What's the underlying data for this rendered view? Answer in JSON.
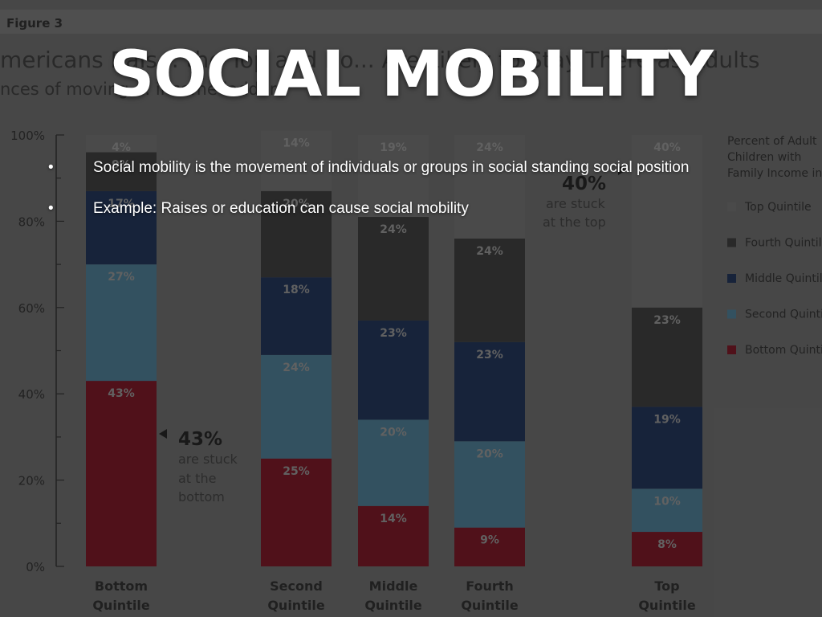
{
  "slide": {
    "title": "SOCIAL MOBILITY",
    "bullets": [
      "Social mobility is the movement of individuals or groups in social standing social position",
      "Example: Raises or education can cause social mobility"
    ],
    "bullet_marker": "•"
  },
  "colors": {
    "bottom": "#7d1020",
    "second": "#4a7e98",
    "middle": "#1b2f57",
    "fourth": "#3a3a3a",
    "top": "#737373",
    "background": "#5f5f5f",
    "figure_bg": "#6d6d6d"
  },
  "chart_data": {
    "type": "bar",
    "stacked": true,
    "figure_label": "Figure 3",
    "title": "mericans Rais... the Top and Bo... Are Likely to Stay There as Adults",
    "subtitle": "nces of moving ... income ladder",
    "ylim": [
      0,
      100
    ],
    "yticks": [
      "0%",
      "20%",
      "40%",
      "60%",
      "80%",
      "100%"
    ],
    "categories": [
      "Bottom Quintile",
      "Second Quintile",
      "Middle Quintile",
      "Fourth Quintile",
      "Top Quintile"
    ],
    "series": [
      {
        "name": "Bottom Quintile",
        "values": [
          43,
          25,
          14,
          9,
          8
        ],
        "labels": [
          "43%",
          "25%",
          "14%",
          "9%",
          "8%"
        ]
      },
      {
        "name": "Second Quintile",
        "values": [
          27,
          24,
          20,
          20,
          10
        ],
        "labels": [
          "27%",
          "24%",
          "20%",
          "20%",
          "10%"
        ]
      },
      {
        "name": "Middle Quintile",
        "values": [
          17,
          18,
          23,
          23,
          19
        ],
        "labels": [
          "17%",
          "18%",
          "23%",
          "23%",
          "19%"
        ]
      },
      {
        "name": "Fourth Quintile",
        "values": [
          9,
          20,
          24,
          24,
          23
        ],
        "labels": [
          "9%",
          "20%",
          "24%",
          "24%",
          "23%"
        ]
      },
      {
        "name": "Top Quintile",
        "values": [
          4,
          14,
          19,
          24,
          40
        ],
        "labels": [
          "4%",
          "14%",
          "19%",
          "24%",
          "40%"
        ]
      }
    ],
    "legend_title": "Percent of Adult Children with Family Income in the:",
    "legend": [
      "Top Quintile",
      "Fourth Quintile",
      "Middle Quintile",
      "Second Quintile",
      "Bottom Quintile"
    ],
    "annotations": [
      {
        "big": "43%",
        "small1": "are stuck",
        "small2": "at the",
        "small3": "bottom"
      },
      {
        "big": "40%",
        "small1": "are stuck",
        "small2": "at the top"
      }
    ]
  }
}
